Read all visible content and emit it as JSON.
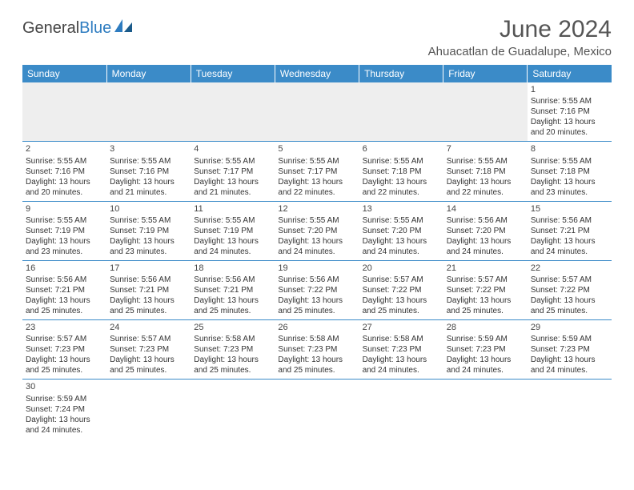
{
  "logo": {
    "text1": "General",
    "text2": "Blue"
  },
  "title": "June 2024",
  "location": "Ahuacatlan de Guadalupe, Mexico",
  "colors": {
    "header_bg": "#3b8bc8",
    "header_text": "#ffffff",
    "cell_border": "#3b8bc8",
    "blank_bg": "#eeeeee",
    "text": "#333333",
    "logo_blue": "#2e7cc0"
  },
  "fonts": {
    "title_size": 30,
    "location_size": 15,
    "th_size": 12,
    "cell_size": 10
  },
  "daysOfWeek": [
    "Sunday",
    "Monday",
    "Tuesday",
    "Wednesday",
    "Thursday",
    "Friday",
    "Saturday"
  ],
  "weeks": [
    [
      null,
      null,
      null,
      null,
      null,
      null,
      {
        "n": "1",
        "sunrise": "Sunrise: 5:55 AM",
        "sunset": "Sunset: 7:16 PM",
        "d1": "Daylight: 13 hours",
        "d2": "and 20 minutes."
      }
    ],
    [
      {
        "n": "2",
        "sunrise": "Sunrise: 5:55 AM",
        "sunset": "Sunset: 7:16 PM",
        "d1": "Daylight: 13 hours",
        "d2": "and 20 minutes."
      },
      {
        "n": "3",
        "sunrise": "Sunrise: 5:55 AM",
        "sunset": "Sunset: 7:16 PM",
        "d1": "Daylight: 13 hours",
        "d2": "and 21 minutes."
      },
      {
        "n": "4",
        "sunrise": "Sunrise: 5:55 AM",
        "sunset": "Sunset: 7:17 PM",
        "d1": "Daylight: 13 hours",
        "d2": "and 21 minutes."
      },
      {
        "n": "5",
        "sunrise": "Sunrise: 5:55 AM",
        "sunset": "Sunset: 7:17 PM",
        "d1": "Daylight: 13 hours",
        "d2": "and 22 minutes."
      },
      {
        "n": "6",
        "sunrise": "Sunrise: 5:55 AM",
        "sunset": "Sunset: 7:18 PM",
        "d1": "Daylight: 13 hours",
        "d2": "and 22 minutes."
      },
      {
        "n": "7",
        "sunrise": "Sunrise: 5:55 AM",
        "sunset": "Sunset: 7:18 PM",
        "d1": "Daylight: 13 hours",
        "d2": "and 22 minutes."
      },
      {
        "n": "8",
        "sunrise": "Sunrise: 5:55 AM",
        "sunset": "Sunset: 7:18 PM",
        "d1": "Daylight: 13 hours",
        "d2": "and 23 minutes."
      }
    ],
    [
      {
        "n": "9",
        "sunrise": "Sunrise: 5:55 AM",
        "sunset": "Sunset: 7:19 PM",
        "d1": "Daylight: 13 hours",
        "d2": "and 23 minutes."
      },
      {
        "n": "10",
        "sunrise": "Sunrise: 5:55 AM",
        "sunset": "Sunset: 7:19 PM",
        "d1": "Daylight: 13 hours",
        "d2": "and 23 minutes."
      },
      {
        "n": "11",
        "sunrise": "Sunrise: 5:55 AM",
        "sunset": "Sunset: 7:19 PM",
        "d1": "Daylight: 13 hours",
        "d2": "and 24 minutes."
      },
      {
        "n": "12",
        "sunrise": "Sunrise: 5:55 AM",
        "sunset": "Sunset: 7:20 PM",
        "d1": "Daylight: 13 hours",
        "d2": "and 24 minutes."
      },
      {
        "n": "13",
        "sunrise": "Sunrise: 5:55 AM",
        "sunset": "Sunset: 7:20 PM",
        "d1": "Daylight: 13 hours",
        "d2": "and 24 minutes."
      },
      {
        "n": "14",
        "sunrise": "Sunrise: 5:56 AM",
        "sunset": "Sunset: 7:20 PM",
        "d1": "Daylight: 13 hours",
        "d2": "and 24 minutes."
      },
      {
        "n": "15",
        "sunrise": "Sunrise: 5:56 AM",
        "sunset": "Sunset: 7:21 PM",
        "d1": "Daylight: 13 hours",
        "d2": "and 24 minutes."
      }
    ],
    [
      {
        "n": "16",
        "sunrise": "Sunrise: 5:56 AM",
        "sunset": "Sunset: 7:21 PM",
        "d1": "Daylight: 13 hours",
        "d2": "and 25 minutes."
      },
      {
        "n": "17",
        "sunrise": "Sunrise: 5:56 AM",
        "sunset": "Sunset: 7:21 PM",
        "d1": "Daylight: 13 hours",
        "d2": "and 25 minutes."
      },
      {
        "n": "18",
        "sunrise": "Sunrise: 5:56 AM",
        "sunset": "Sunset: 7:21 PM",
        "d1": "Daylight: 13 hours",
        "d2": "and 25 minutes."
      },
      {
        "n": "19",
        "sunrise": "Sunrise: 5:56 AM",
        "sunset": "Sunset: 7:22 PM",
        "d1": "Daylight: 13 hours",
        "d2": "and 25 minutes."
      },
      {
        "n": "20",
        "sunrise": "Sunrise: 5:57 AM",
        "sunset": "Sunset: 7:22 PM",
        "d1": "Daylight: 13 hours",
        "d2": "and 25 minutes."
      },
      {
        "n": "21",
        "sunrise": "Sunrise: 5:57 AM",
        "sunset": "Sunset: 7:22 PM",
        "d1": "Daylight: 13 hours",
        "d2": "and 25 minutes."
      },
      {
        "n": "22",
        "sunrise": "Sunrise: 5:57 AM",
        "sunset": "Sunset: 7:22 PM",
        "d1": "Daylight: 13 hours",
        "d2": "and 25 minutes."
      }
    ],
    [
      {
        "n": "23",
        "sunrise": "Sunrise: 5:57 AM",
        "sunset": "Sunset: 7:23 PM",
        "d1": "Daylight: 13 hours",
        "d2": "and 25 minutes."
      },
      {
        "n": "24",
        "sunrise": "Sunrise: 5:57 AM",
        "sunset": "Sunset: 7:23 PM",
        "d1": "Daylight: 13 hours",
        "d2": "and 25 minutes."
      },
      {
        "n": "25",
        "sunrise": "Sunrise: 5:58 AM",
        "sunset": "Sunset: 7:23 PM",
        "d1": "Daylight: 13 hours",
        "d2": "and 25 minutes."
      },
      {
        "n": "26",
        "sunrise": "Sunrise: 5:58 AM",
        "sunset": "Sunset: 7:23 PM",
        "d1": "Daylight: 13 hours",
        "d2": "and 25 minutes."
      },
      {
        "n": "27",
        "sunrise": "Sunrise: 5:58 AM",
        "sunset": "Sunset: 7:23 PM",
        "d1": "Daylight: 13 hours",
        "d2": "and 24 minutes."
      },
      {
        "n": "28",
        "sunrise": "Sunrise: 5:59 AM",
        "sunset": "Sunset: 7:23 PM",
        "d1": "Daylight: 13 hours",
        "d2": "and 24 minutes."
      },
      {
        "n": "29",
        "sunrise": "Sunrise: 5:59 AM",
        "sunset": "Sunset: 7:23 PM",
        "d1": "Daylight: 13 hours",
        "d2": "and 24 minutes."
      }
    ],
    [
      {
        "n": "30",
        "sunrise": "Sunrise: 5:59 AM",
        "sunset": "Sunset: 7:24 PM",
        "d1": "Daylight: 13 hours",
        "d2": "and 24 minutes."
      },
      null,
      null,
      null,
      null,
      null,
      null
    ]
  ]
}
